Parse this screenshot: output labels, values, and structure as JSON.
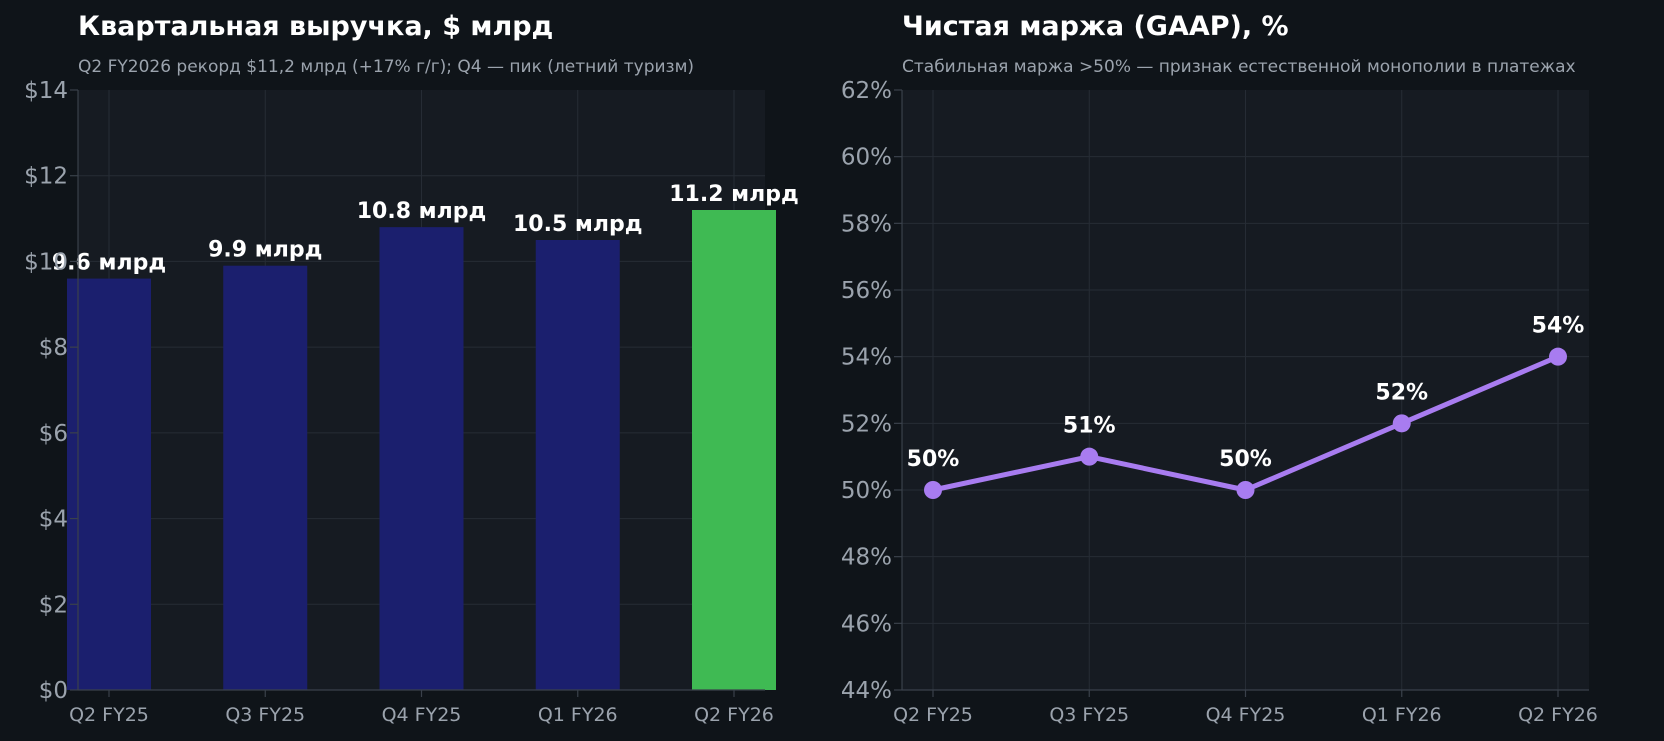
{
  "chart_data": [
    {
      "type": "bar",
      "title": "Квартальная выручка, $ млрд",
      "subtitle": "Q2 FY2026 рекорд $11,2 млрд (+17% г/г); Q4 — пик (летний туризм)",
      "categories": [
        "Q2 FY25",
        "Q3 FY25",
        "Q4 FY25",
        "Q1 FY26",
        "Q2 FY26"
      ],
      "values": [
        9.6,
        9.9,
        10.8,
        10.5,
        11.2
      ],
      "value_labels": [
        "9.6 млрд",
        "9.9 млрд",
        "10.8 млрд",
        "10.5 млрд",
        "11.2 млрд"
      ],
      "colors": [
        "#1b1f6e",
        "#1b1f6e",
        "#1b1f6e",
        "#1b1f6e",
        "#3fba53"
      ],
      "ylim": [
        0,
        14
      ],
      "yticks": [
        0,
        2,
        4,
        6,
        8,
        10,
        12,
        14
      ],
      "ytick_labels": [
        "$0",
        "$2",
        "$4",
        "$6",
        "$8",
        "$10",
        "$12",
        "$14"
      ],
      "xlabel": "",
      "ylabel": "",
      "grid": true
    },
    {
      "type": "line",
      "title": "Чистая маржа (GAAP), %",
      "subtitle": "Стабильная маржа >50% — признак естественной монополии в платежах",
      "categories": [
        "Q2 FY25",
        "Q3 FY25",
        "Q4 FY25",
        "Q1 FY26",
        "Q2 FY26"
      ],
      "values": [
        50,
        51,
        50,
        52,
        54
      ],
      "value_labels": [
        "50%",
        "51%",
        "50%",
        "52%",
        "54%"
      ],
      "line_color": "#a87cf0",
      "ylim": [
        44,
        62
      ],
      "yticks": [
        44,
        46,
        48,
        50,
        52,
        54,
        56,
        58,
        60,
        62
      ],
      "ytick_labels": [
        "44%",
        "46%",
        "48%",
        "50%",
        "52%",
        "54%",
        "56%",
        "58%",
        "60%",
        "62%"
      ],
      "xlabel": "",
      "ylabel": "",
      "grid": true
    }
  ]
}
